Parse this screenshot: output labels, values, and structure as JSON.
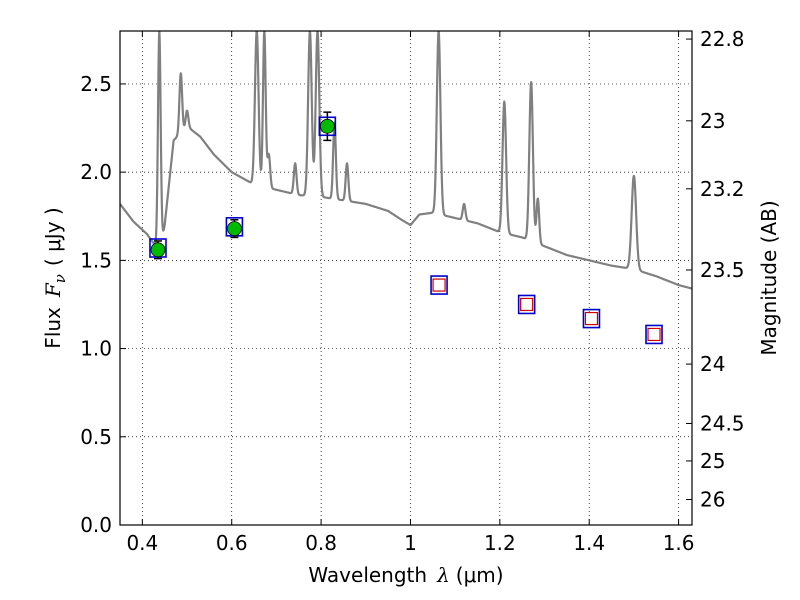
{
  "chart_data": {
    "type": "scatter",
    "xlabel_text": "Wavelength",
    "xlabel_symbol": "λ",
    "xlabel_unit": "(μm)",
    "ylabel_text": "Flux",
    "ylabel_symbol": "F",
    "ylabel_subscript": "ν",
    "ylabel_unit": "( μJy )",
    "y2label": "Magnitude (AB)",
    "xlim": [
      0.35,
      1.63
    ],
    "ylim": [
      0.0,
      2.8
    ],
    "grid": true,
    "grid_style": "dotted",
    "x_ticks": [
      {
        "value": 0.4,
        "label": "0.4"
      },
      {
        "value": 0.6,
        "label": "0.6"
      },
      {
        "value": 0.8,
        "label": "0.8"
      },
      {
        "value": 1.0,
        "label": "1"
      },
      {
        "value": 1.2,
        "label": "1.2"
      },
      {
        "value": 1.4,
        "label": "1.4"
      },
      {
        "value": 1.6,
        "label": "1.6"
      }
    ],
    "y_ticks": [
      {
        "value": 0.0,
        "label": "0.0"
      },
      {
        "value": 0.5,
        "label": "0.5"
      },
      {
        "value": 1.0,
        "label": "1.0"
      },
      {
        "value": 1.5,
        "label": "1.5"
      },
      {
        "value": 2.0,
        "label": "2.0"
      },
      {
        "value": 2.5,
        "label": "2.5"
      }
    ],
    "y2_ticks": [
      {
        "value": 22.8,
        "label": "22.8"
      },
      {
        "value": 23.0,
        "label": "23"
      },
      {
        "value": 23.2,
        "label": "23.2"
      },
      {
        "value": 23.5,
        "label": "23.5"
      },
      {
        "value": 24.0,
        "label": "24"
      },
      {
        "value": 24.5,
        "label": "24.5"
      },
      {
        "value": 25.0,
        "label": "25"
      },
      {
        "value": 26.0,
        "label": "26"
      }
    ],
    "colors": {
      "spectrum": "#808080",
      "observed_fill": "#00bb00",
      "model_box": "#0000cc",
      "prediction_box": "#cc0000",
      "errorbar": "#000000"
    },
    "spectrum": {
      "continuum": [
        [
          0.35,
          1.82
        ],
        [
          0.38,
          1.72
        ],
        [
          0.41,
          1.65
        ],
        [
          0.43,
          1.58
        ],
        [
          0.44,
          1.55
        ],
        [
          0.45,
          1.7
        ],
        [
          0.47,
          2.18
        ],
        [
          0.5,
          2.26
        ],
        [
          0.53,
          2.2
        ],
        [
          0.56,
          2.1
        ],
        [
          0.6,
          2.0
        ],
        [
          0.65,
          1.93
        ],
        [
          0.7,
          1.9
        ],
        [
          0.75,
          1.87
        ],
        [
          0.8,
          1.86
        ],
        [
          0.85,
          1.84
        ],
        [
          0.9,
          1.82
        ],
        [
          0.95,
          1.78
        ],
        [
          0.98,
          1.73
        ],
        [
          1.0,
          1.7
        ],
        [
          1.02,
          1.76
        ],
        [
          1.05,
          1.77
        ],
        [
          1.1,
          1.74
        ],
        [
          1.15,
          1.71
        ],
        [
          1.2,
          1.66
        ],
        [
          1.25,
          1.63
        ],
        [
          1.3,
          1.58
        ],
        [
          1.35,
          1.53
        ],
        [
          1.4,
          1.5
        ],
        [
          1.45,
          1.47
        ],
        [
          1.5,
          1.45
        ],
        [
          1.55,
          1.41
        ],
        [
          1.6,
          1.36
        ],
        [
          1.63,
          1.34
        ]
      ],
      "lines": [
        {
          "x": 0.438,
          "peak": 2.8,
          "width": 0.003
        },
        {
          "x": 0.486,
          "peak": 2.56,
          "width": 0.003
        },
        {
          "x": 0.5,
          "peak": 2.35,
          "width": 0.003
        },
        {
          "x": 0.656,
          "peak": 2.8,
          "width": 0.004
        },
        {
          "x": 0.673,
          "peak": 2.8,
          "width": 0.003
        },
        {
          "x": 0.683,
          "peak": 2.1,
          "width": 0.003
        },
        {
          "x": 0.742,
          "peak": 2.05,
          "width": 0.003
        },
        {
          "x": 0.775,
          "peak": 2.8,
          "width": 0.004
        },
        {
          "x": 0.792,
          "peak": 2.8,
          "width": 0.004
        },
        {
          "x": 0.83,
          "peak": 2.28,
          "width": 0.003
        },
        {
          "x": 0.858,
          "peak": 2.05,
          "width": 0.003
        },
        {
          "x": 1.063,
          "peak": 2.8,
          "width": 0.004
        },
        {
          "x": 1.12,
          "peak": 1.82,
          "width": 0.003
        },
        {
          "x": 1.21,
          "peak": 2.4,
          "width": 0.004
        },
        {
          "x": 1.27,
          "peak": 2.51,
          "width": 0.004
        },
        {
          "x": 1.285,
          "peak": 1.85,
          "width": 0.003
        },
        {
          "x": 1.5,
          "peak": 1.98,
          "width": 0.005
        }
      ]
    },
    "observed_points": [
      {
        "x": 0.435,
        "y": 1.56,
        "err": 0.05
      },
      {
        "x": 0.606,
        "y": 1.68,
        "err": 0.05
      },
      {
        "x": 0.814,
        "y": 2.26,
        "err": 0.08
      }
    ],
    "model_points": [
      {
        "x": 0.435,
        "y": 1.57
      },
      {
        "x": 0.606,
        "y": 1.69
      },
      {
        "x": 0.814,
        "y": 2.26
      },
      {
        "x": 1.064,
        "y": 1.36
      },
      {
        "x": 1.26,
        "y": 1.25
      },
      {
        "x": 1.405,
        "y": 1.17
      },
      {
        "x": 1.545,
        "y": 1.08
      }
    ],
    "prediction_points": [
      {
        "x": 1.064,
        "y": 1.36
      },
      {
        "x": 1.26,
        "y": 1.25
      },
      {
        "x": 1.405,
        "y": 1.17
      },
      {
        "x": 1.545,
        "y": 1.08
      }
    ]
  }
}
